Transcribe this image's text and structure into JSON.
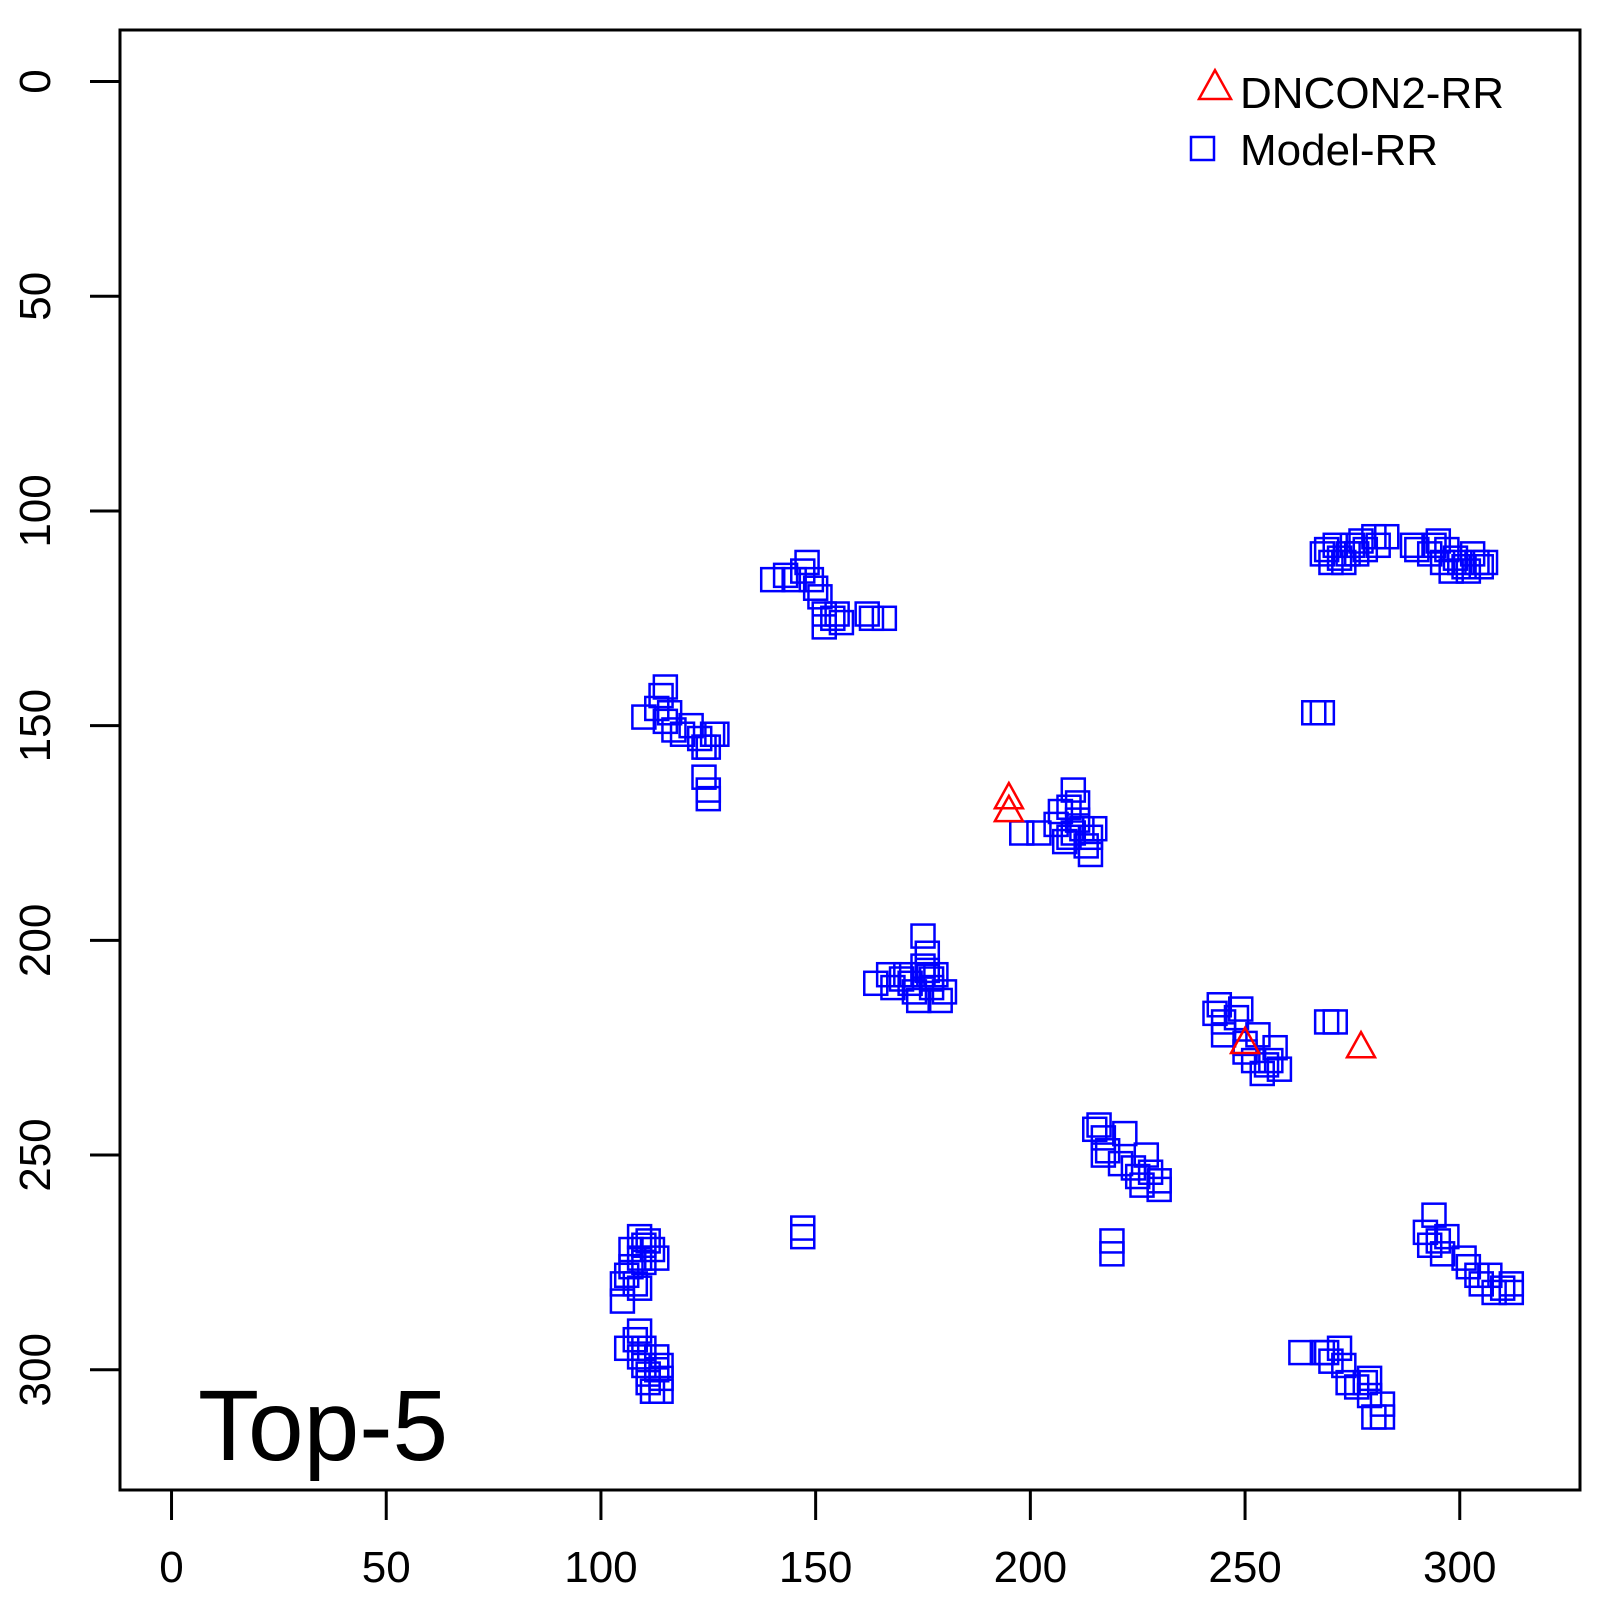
{
  "chart_data": {
    "type": "scatter",
    "title": "",
    "xlabel": "",
    "ylabel": "",
    "xlim": [
      -12,
      328
    ],
    "ylim": [
      -12,
      328
    ],
    "y_reversed": true,
    "x_ticks": [
      0,
      50,
      100,
      150,
      200,
      250,
      300
    ],
    "y_ticks": [
      0,
      50,
      100,
      150,
      200,
      250,
      300
    ],
    "grid": false,
    "legend_position": "top-right",
    "panel_label": "Top-5",
    "series": [
      {
        "name": "DNCON2-RR",
        "marker": "triangle",
        "color": "#ff0000",
        "points": [
          [
            195,
            167
          ],
          [
            195,
            170
          ],
          [
            250,
            224
          ],
          [
            277,
            225
          ]
        ]
      },
      {
        "name": "Model-RR",
        "marker": "square",
        "color": "#0000ff",
        "points": [
          [
            140,
            116
          ],
          [
            143,
            115
          ],
          [
            145,
            116
          ],
          [
            147,
            114
          ],
          [
            148,
            112
          ],
          [
            149,
            116
          ],
          [
            150,
            118
          ],
          [
            151,
            120
          ],
          [
            152,
            124
          ],
          [
            152,
            127
          ],
          [
            154,
            125
          ],
          [
            155,
            124
          ],
          [
            156,
            126
          ],
          [
            162,
            124
          ],
          [
            163,
            125
          ],
          [
            166,
            125
          ],
          [
            110,
            148
          ],
          [
            113,
            146
          ],
          [
            114,
            143
          ],
          [
            115,
            141
          ],
          [
            115,
            149
          ],
          [
            116,
            147
          ],
          [
            117,
            151
          ],
          [
            119,
            152
          ],
          [
            121,
            150
          ],
          [
            123,
            153
          ],
          [
            124,
            155
          ],
          [
            125,
            155
          ],
          [
            126,
            152
          ],
          [
            127,
            152
          ],
          [
            124,
            162
          ],
          [
            125,
            165
          ],
          [
            125,
            167
          ],
          [
            164,
            210
          ],
          [
            167,
            208
          ],
          [
            168,
            211
          ],
          [
            170,
            209
          ],
          [
            171,
            208
          ],
          [
            172,
            210
          ],
          [
            173,
            212
          ],
          [
            174,
            214
          ],
          [
            175,
            208
          ],
          [
            175,
            206
          ],
          [
            175,
            199
          ],
          [
            176,
            203
          ],
          [
            177,
            211
          ],
          [
            177,
            209
          ],
          [
            178,
            208
          ],
          [
            179,
            214
          ],
          [
            180,
            212
          ],
          [
            176,
            207
          ],
          [
            198,
            175
          ],
          [
            202,
            175
          ],
          [
            206,
            173
          ],
          [
            207,
            170
          ],
          [
            208,
            177
          ],
          [
            209,
            169
          ],
          [
            209,
            176
          ],
          [
            210,
            165
          ],
          [
            210,
            175
          ],
          [
            211,
            168
          ],
          [
            211,
            172
          ],
          [
            212,
            174
          ],
          [
            213,
            178
          ],
          [
            214,
            176
          ],
          [
            214,
            180
          ],
          [
            215,
            174
          ],
          [
            243,
            217
          ],
          [
            244,
            215
          ],
          [
            245,
            219
          ],
          [
            245,
            222
          ],
          [
            248,
            218
          ],
          [
            249,
            216
          ],
          [
            250,
            224
          ],
          [
            250,
            226
          ],
          [
            252,
            228
          ],
          [
            253,
            222
          ],
          [
            254,
            231
          ],
          [
            255,
            229
          ],
          [
            256,
            228
          ],
          [
            257,
            225
          ],
          [
            258,
            230
          ],
          [
            269,
            219
          ],
          [
            271,
            219
          ],
          [
            266,
            147
          ],
          [
            268,
            147
          ],
          [
            215,
            244
          ],
          [
            216,
            243
          ],
          [
            217,
            246
          ],
          [
            217,
            250
          ],
          [
            218,
            249
          ],
          [
            221,
            252
          ],
          [
            222,
            245
          ],
          [
            224,
            253
          ],
          [
            225,
            255
          ],
          [
            226,
            257
          ],
          [
            227,
            250
          ],
          [
            228,
            254
          ],
          [
            230,
            256
          ],
          [
            230,
            258
          ],
          [
            219,
            270
          ],
          [
            219,
            273
          ],
          [
            147,
            267
          ],
          [
            147,
            269
          ],
          [
            105,
            280
          ],
          [
            105,
            284
          ],
          [
            106,
            278
          ],
          [
            107,
            272
          ],
          [
            107,
            276
          ],
          [
            108,
            280
          ],
          [
            109,
            269
          ],
          [
            109,
            274
          ],
          [
            109,
            281
          ],
          [
            110,
            271
          ],
          [
            110,
            275
          ],
          [
            111,
            270
          ],
          [
            112,
            272
          ],
          [
            113,
            274
          ],
          [
            106,
            295
          ],
          [
            108,
            293
          ],
          [
            109,
            291
          ],
          [
            109,
            297
          ],
          [
            110,
            295
          ],
          [
            110,
            299
          ],
          [
            111,
            301
          ],
          [
            111,
            303
          ],
          [
            112,
            305
          ],
          [
            113,
            297
          ],
          [
            113,
            300
          ],
          [
            114,
            299
          ],
          [
            114,
            302
          ],
          [
            114,
            305
          ],
          [
            263,
            296
          ],
          [
            268,
            296
          ],
          [
            269,
            296
          ],
          [
            270,
            298
          ],
          [
            272,
            295
          ],
          [
            273,
            299
          ],
          [
            274,
            303
          ],
          [
            276,
            304
          ],
          [
            278,
            303
          ],
          [
            279,
            302
          ],
          [
            279,
            306
          ],
          [
            280,
            311
          ],
          [
            282,
            308
          ],
          [
            282,
            311
          ],
          [
            268,
            110
          ],
          [
            269,
            109
          ],
          [
            270,
            112
          ],
          [
            271,
            108
          ],
          [
            272,
            111
          ],
          [
            273,
            112
          ],
          [
            274,
            110
          ],
          [
            275,
            108
          ],
          [
            276,
            110
          ],
          [
            277,
            107
          ],
          [
            278,
            109
          ],
          [
            280,
            106
          ],
          [
            281,
            108
          ],
          [
            283,
            106
          ],
          [
            289,
            108
          ],
          [
            290,
            109
          ],
          [
            293,
            110
          ],
          [
            294,
            108
          ],
          [
            295,
            107
          ],
          [
            296,
            112
          ],
          [
            297,
            109
          ],
          [
            298,
            114
          ],
          [
            299,
            111
          ],
          [
            300,
            112
          ],
          [
            301,
            113
          ],
          [
            302,
            114
          ],
          [
            303,
            110
          ],
          [
            304,
            112
          ],
          [
            305,
            113
          ],
          [
            306,
            112
          ],
          [
            292,
            268
          ],
          [
            293,
            271
          ],
          [
            294,
            264
          ],
          [
            295,
            270
          ],
          [
            296,
            273
          ],
          [
            297,
            269
          ],
          [
            301,
            274
          ],
          [
            302,
            276
          ],
          [
            304,
            278
          ],
          [
            305,
            280
          ],
          [
            307,
            278
          ],
          [
            308,
            282
          ],
          [
            310,
            281
          ],
          [
            312,
            280
          ],
          [
            312,
            282
          ]
        ]
      }
    ]
  }
}
